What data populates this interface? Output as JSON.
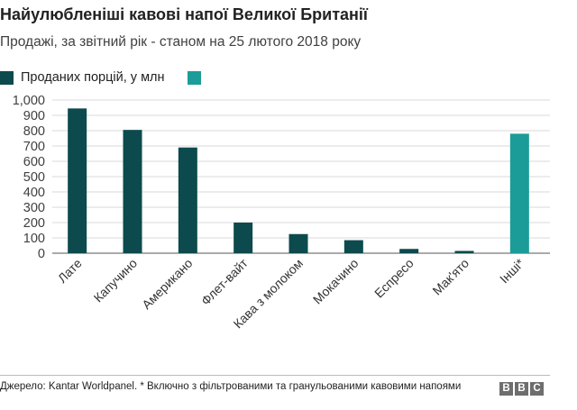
{
  "title": "Найулюбленіші кавові напої Великої Британії",
  "subtitle": "Продажі, за звітний рік - станом на 25 лютого 2018 року",
  "legend": [
    {
      "label": "Проданих порцій, у млн",
      "color": "#0d4a4d"
    },
    {
      "label": "",
      "color": "#1b9c98"
    }
  ],
  "chart_data": {
    "type": "bar",
    "title": "Найулюбленіші кавові напої Великої Британії",
    "subtitle": "Продажі, за звітний рік - станом на 25 лютого 2018 року",
    "xlabel": "",
    "ylabel": "",
    "ylim": [
      0,
      1000
    ],
    "yticks": [
      0,
      100,
      200,
      300,
      400,
      500,
      600,
      700,
      800,
      900,
      1000
    ],
    "ytick_labels": [
      "0",
      "100",
      "200",
      "300",
      "400",
      "500",
      "600",
      "700",
      "800",
      "900",
      "1,000"
    ],
    "grid": true,
    "legend_position": "top-left",
    "categories": [
      "Лате",
      "Капучино",
      "Американо",
      "Флет-вайт",
      "Кава з молоком",
      "Мокачино",
      "Еспресо",
      "Мак'ято",
      "Інші*"
    ],
    "series": [
      {
        "name": "Проданих порцій, у млн",
        "values": [
          945,
          805,
          690,
          200,
          125,
          85,
          28,
          15,
          780
        ]
      }
    ],
    "bar_colors": [
      "#0d4a4d",
      "#0d4a4d",
      "#0d4a4d",
      "#0d4a4d",
      "#0d4a4d",
      "#0d4a4d",
      "#0d4a4d",
      "#0d4a4d",
      "#1b9c98"
    ]
  },
  "footer": {
    "source": "Джерело: Kantar Worldpanel. * Включно з фільтрованими та гранульованими кавовими напоями",
    "logo": [
      "B",
      "B",
      "C"
    ]
  }
}
